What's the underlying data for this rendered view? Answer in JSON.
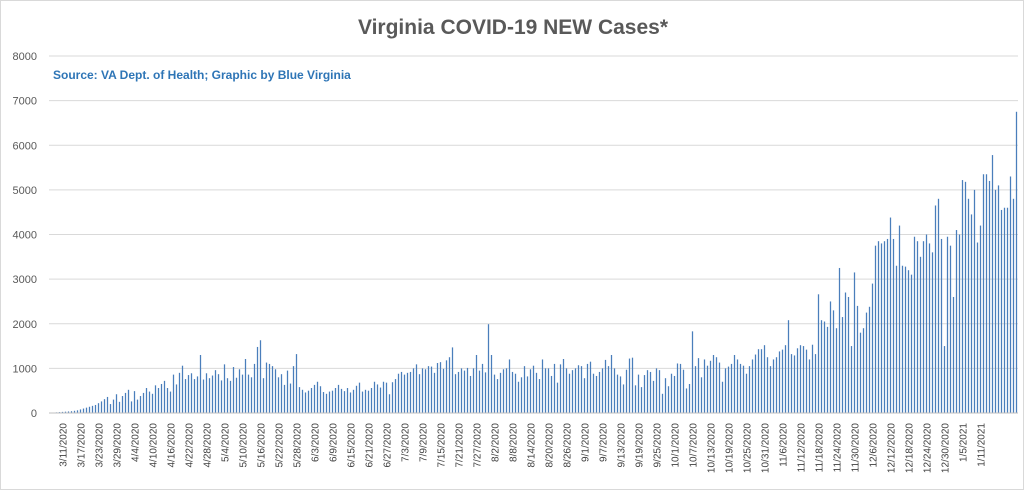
{
  "chart_data": {
    "type": "bar",
    "title": "Virginia COVID-19 NEW Cases*",
    "annotation": "Source: VA Dept. of Health; Graphic by Blue Virginia",
    "xlabel": "",
    "ylabel": "",
    "ylim": [
      0,
      8000
    ],
    "yticks": [
      0,
      1000,
      2000,
      3000,
      4000,
      5000,
      6000,
      7000,
      8000
    ],
    "grid": true,
    "bar_color": "#4a7ebb",
    "x_tick_labels": [
      "3/11/2020",
      "3/17/2020",
      "3/23/2020",
      "3/29/2020",
      "4/4/2020",
      "4/10/2020",
      "4/16/2020",
      "4/22/2020",
      "4/28/2020",
      "5/4/2020",
      "5/10/2020",
      "5/16/2020",
      "5/22/2020",
      "5/28/2020",
      "6/3/2020",
      "6/9/2020",
      "6/15/2020",
      "6/21/2020",
      "6/27/2020",
      "7/3/2020",
      "7/9/2020",
      "7/15/2020",
      "7/21/2020",
      "7/27/2020",
      "8/2/2020",
      "8/8/2020",
      "8/14/2020",
      "8/20/2020",
      "8/26/2020",
      "9/1/2020",
      "9/7/2020",
      "9/13/2020",
      "9/19/2020",
      "9/25/2020",
      "10/1/2020",
      "10/7/2020",
      "10/13/2020",
      "10/19/2020",
      "10/25/2020",
      "10/31/2020",
      "11/6/2020",
      "11/12/2020",
      "11/18/2020",
      "11/24/2020",
      "11/30/2020",
      "12/6/2020",
      "12/12/2020",
      "12/18/2020",
      "12/24/2020",
      "12/30/2020",
      "1/5/2021",
      "1/11/2021"
    ],
    "values": [
      5,
      10,
      15,
      20,
      25,
      30,
      35,
      40,
      50,
      60,
      80,
      100,
      120,
      140,
      160,
      180,
      220,
      260,
      310,
      360,
      200,
      300,
      420,
      250,
      380,
      450,
      520,
      260,
      490,
      300,
      380,
      450,
      560,
      480,
      430,
      620,
      560,
      650,
      720,
      560,
      480,
      860,
      640,
      900,
      1060,
      760,
      850,
      890,
      760,
      820,
      1300,
      750,
      890,
      780,
      840,
      960,
      870,
      730,
      1090,
      780,
      720,
      1030,
      790,
      980,
      860,
      1210,
      860,
      800,
      1100,
      1480,
      1630,
      780,
      1130,
      1100,
      1050,
      980,
      800,
      870,
      630,
      950,
      660,
      1050,
      1320,
      580,
      520,
      460,
      500,
      560,
      630,
      700,
      600,
      470,
      430,
      480,
      500,
      560,
      630,
      540,
      490,
      560,
      460,
      520,
      610,
      680,
      480,
      520,
      500,
      560,
      700,
      640,
      570,
      700,
      680,
      420,
      690,
      760,
      880,
      920,
      860,
      900,
      920,
      1000,
      1090,
      870,
      1000,
      980,
      1050,
      1040,
      900,
      1120,
      1140,
      990,
      1180,
      1250,
      1470,
      870,
      920,
      1000,
      950,
      1010,
      830,
      1000,
      1300,
      950,
      1100,
      910,
      1990,
      1300,
      860,
      760,
      900,
      980,
      1000,
      1200,
      920,
      880,
      700,
      800,
      1050,
      820,
      980,
      1060,
      900,
      760,
      1200,
      1000,
      1000,
      830,
      1100,
      680,
      1090,
      1210,
      1000,
      880,
      960,
      1000,
      1070,
      1050,
      780,
      1100,
      1150,
      880,
      830,
      920,
      1000,
      1190,
      1050,
      1300,
      1000,
      860,
      820,
      640,
      970,
      1220,
      1240,
      620,
      860,
      580,
      850,
      960,
      920,
      720,
      1000,
      960,
      430,
      780,
      600,
      880,
      830,
      1110,
      1100,
      970,
      550,
      650,
      1830,
      1050,
      1230,
      800,
      1200,
      1060,
      1170,
      1300,
      1250,
      1130,
      700,
      1000,
      1040,
      1100,
      1300,
      1200,
      1100,
      1060,
      880,
      1050,
      1200,
      1310,
      1430,
      1430,
      1520,
      1250,
      1050,
      1200,
      1250,
      1380,
      1420,
      1520,
      2080,
      1320,
      1290,
      1450,
      1520,
      1500,
      1420,
      1200,
      1530,
      1320,
      2660,
      2080,
      2050,
      1930,
      2500,
      2300,
      1900,
      3250,
      2150,
      2700,
      2600,
      1500,
      3150,
      2400,
      1800,
      1900,
      2250,
      2380,
      2900,
      3750,
      3850,
      3800,
      3850,
      3900,
      4380,
      3900,
      3300,
      4200,
      3300,
      3280,
      3200,
      3100,
      3950,
      3850,
      3500,
      3850,
      4000,
      3800,
      3600,
      4650,
      4800,
      3900,
      1500,
      3950,
      3750,
      2600,
      4100,
      4000,
      5220,
      5180,
      4800,
      4450,
      5000,
      3820,
      4200,
      5350,
      5350,
      5200,
      5780,
      5000,
      5100,
      4550,
      4600,
      4600,
      5300,
      4800,
      6750
    ]
  }
}
